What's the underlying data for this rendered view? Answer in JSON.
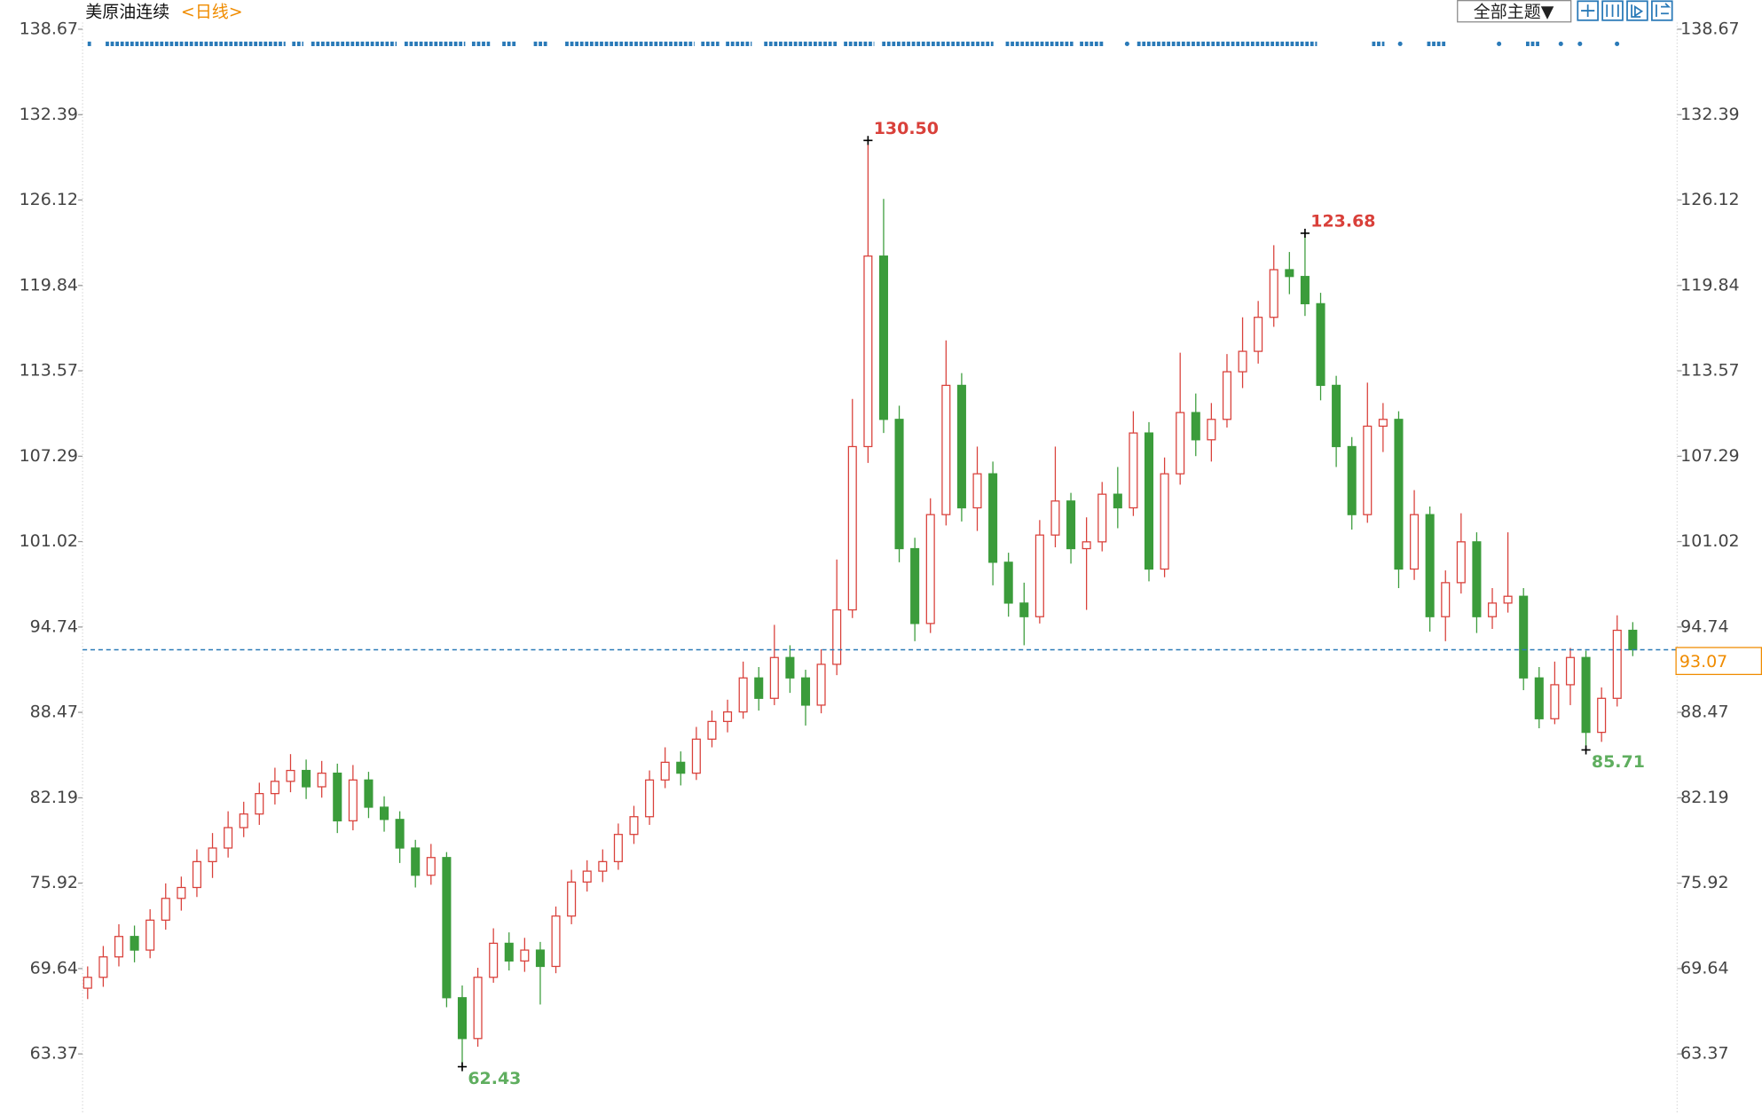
{
  "chart_data": {
    "type": "candlestick",
    "title": "美原油连续",
    "period": "<日线>",
    "theme_button": "全部主题▼",
    "ylim": [
      59.08,
      138.67
    ],
    "yticks": [
      63.37,
      69.64,
      75.92,
      82.19,
      88.47,
      94.74,
      101.02,
      107.29,
      113.57,
      119.84,
      126.12,
      132.39,
      138.67
    ],
    "up_color": "#d9403a",
    "down_color": "#3b9c3b",
    "last_price": 93.07,
    "annotations": [
      {
        "value": 130.5,
        "label": "130.50",
        "kind": "high"
      },
      {
        "value": 123.68,
        "label": "123.68",
        "kind": "high"
      },
      {
        "value": 62.43,
        "label": "62.43",
        "kind": "low"
      },
      {
        "value": 85.71,
        "label": "85.71",
        "kind": "low"
      }
    ],
    "open": [
      68.2,
      69.0,
      70.5,
      72.0,
      71.0,
      73.2,
      74.8,
      75.6,
      77.5,
      78.5,
      80.0,
      81.0,
      82.5,
      83.4,
      84.2,
      83.0,
      84.0,
      80.5,
      83.5,
      81.5,
      80.6,
      78.5,
      76.5,
      77.8,
      67.5,
      64.5,
      69.0,
      71.5,
      70.2,
      71.0,
      69.8,
      73.5,
      76.0,
      76.8,
      77.5,
      79.5,
      80.8,
      83.5,
      84.8,
      84.0,
      86.5,
      87.8,
      88.5,
      91.0,
      89.5,
      92.5,
      91.0,
      89.0,
      92.0,
      96.0,
      108.0,
      122.0,
      110.0,
      100.5,
      95.0,
      103.0,
      112.5,
      103.5,
      106.0,
      99.5,
      96.5,
      95.5,
      101.5,
      104.0,
      100.5,
      101.0,
      104.5,
      103.5,
      109.0,
      99.0,
      106.0,
      110.5,
      108.5,
      110.0,
      113.5,
      115.0,
      117.5,
      121.0,
      120.5,
      118.5,
      112.5,
      108.0,
      103.0,
      109.5,
      110.0,
      99.0,
      103.0,
      95.5,
      98.0,
      101.0,
      95.5,
      96.5,
      97.0,
      91.0,
      88.0,
      90.5,
      92.5,
      87.0,
      89.5,
      94.5
    ],
    "high": [
      69.8,
      71.3,
      72.9,
      72.8,
      74.0,
      75.9,
      76.4,
      78.4,
      79.6,
      81.2,
      81.9,
      83.3,
      84.4,
      85.4,
      85.0,
      84.9,
      84.7,
      84.6,
      84.1,
      82.3,
      81.2,
      79.1,
      78.8,
      78.2,
      68.4,
      69.7,
      72.6,
      72.3,
      71.9,
      71.6,
      74.2,
      76.9,
      77.6,
      78.4,
      80.3,
      81.6,
      84.2,
      85.9,
      85.6,
      87.4,
      88.6,
      89.4,
      92.2,
      91.8,
      94.9,
      93.4,
      91.6,
      93.1,
      99.7,
      111.5,
      130.5,
      126.2,
      111.0,
      101.3,
      104.2,
      115.8,
      113.4,
      108.0,
      106.9,
      100.2,
      98.0,
      102.6,
      108.0,
      104.6,
      102.8,
      105.4,
      106.5,
      110.6,
      109.8,
      107.2,
      114.9,
      111.9,
      111.2,
      114.8,
      117.5,
      118.7,
      122.8,
      122.3,
      123.68,
      119.3,
      113.2,
      108.7,
      112.7,
      111.2,
      110.6,
      104.8,
      103.6,
      98.9,
      103.1,
      101.7,
      97.6,
      101.7,
      97.6,
      91.8,
      92.2,
      93.2,
      93.0,
      90.3,
      95.6,
      95.1
    ],
    "low": [
      67.4,
      68.3,
      69.8,
      70.1,
      70.4,
      72.5,
      73.9,
      74.9,
      76.3,
      77.8,
      79.3,
      80.2,
      81.7,
      82.6,
      82.1,
      82.2,
      79.6,
      79.8,
      80.7,
      79.7,
      77.4,
      75.6,
      75.8,
      66.8,
      62.43,
      63.9,
      68.6,
      69.5,
      69.4,
      67.0,
      69.3,
      72.9,
      75.3,
      76.0,
      76.9,
      78.8,
      80.2,
      82.9,
      83.1,
      83.5,
      85.9,
      87.0,
      88.0,
      88.6,
      89.0,
      89.9,
      87.5,
      88.4,
      91.2,
      95.4,
      106.8,
      109.0,
      99.5,
      93.7,
      94.3,
      102.2,
      102.5,
      101.8,
      97.8,
      95.5,
      93.4,
      95.0,
      100.6,
      99.4,
      96.0,
      100.3,
      102.0,
      102.9,
      98.1,
      98.4,
      105.2,
      107.3,
      106.9,
      109.4,
      112.3,
      114.1,
      116.8,
      119.2,
      117.6,
      111.4,
      106.5,
      101.9,
      102.4,
      107.6,
      97.6,
      98.2,
      94.4,
      93.7,
      97.2,
      94.3,
      94.6,
      95.8,
      90.1,
      87.3,
      87.6,
      89.0,
      85.71,
      86.3,
      88.9,
      92.6
    ],
    "close": [
      69.0,
      70.5,
      72.0,
      71.0,
      73.2,
      74.8,
      75.6,
      77.5,
      78.5,
      80.0,
      81.0,
      82.5,
      83.4,
      84.2,
      83.0,
      84.0,
      80.5,
      83.5,
      81.5,
      80.6,
      78.5,
      76.5,
      77.8,
      67.5,
      64.5,
      69.0,
      71.5,
      70.2,
      71.0,
      69.8,
      73.5,
      76.0,
      76.8,
      77.5,
      79.5,
      80.8,
      83.5,
      84.8,
      84.0,
      86.5,
      87.8,
      88.5,
      91.0,
      89.5,
      92.5,
      91.0,
      89.0,
      92.0,
      96.0,
      108.0,
      122.0,
      110.0,
      100.5,
      95.0,
      103.0,
      112.5,
      103.5,
      106.0,
      99.5,
      96.5,
      95.5,
      101.5,
      104.0,
      100.5,
      101.0,
      104.5,
      103.5,
      109.0,
      99.0,
      106.0,
      110.5,
      108.5,
      110.0,
      113.5,
      115.0,
      117.5,
      121.0,
      120.5,
      118.5,
      112.5,
      108.0,
      103.0,
      109.5,
      110.0,
      99.0,
      103.0,
      95.5,
      98.0,
      101.0,
      95.5,
      96.5,
      97.0,
      91.0,
      88.0,
      90.5,
      92.5,
      87.0,
      89.5,
      94.5,
      93.07
    ]
  }
}
